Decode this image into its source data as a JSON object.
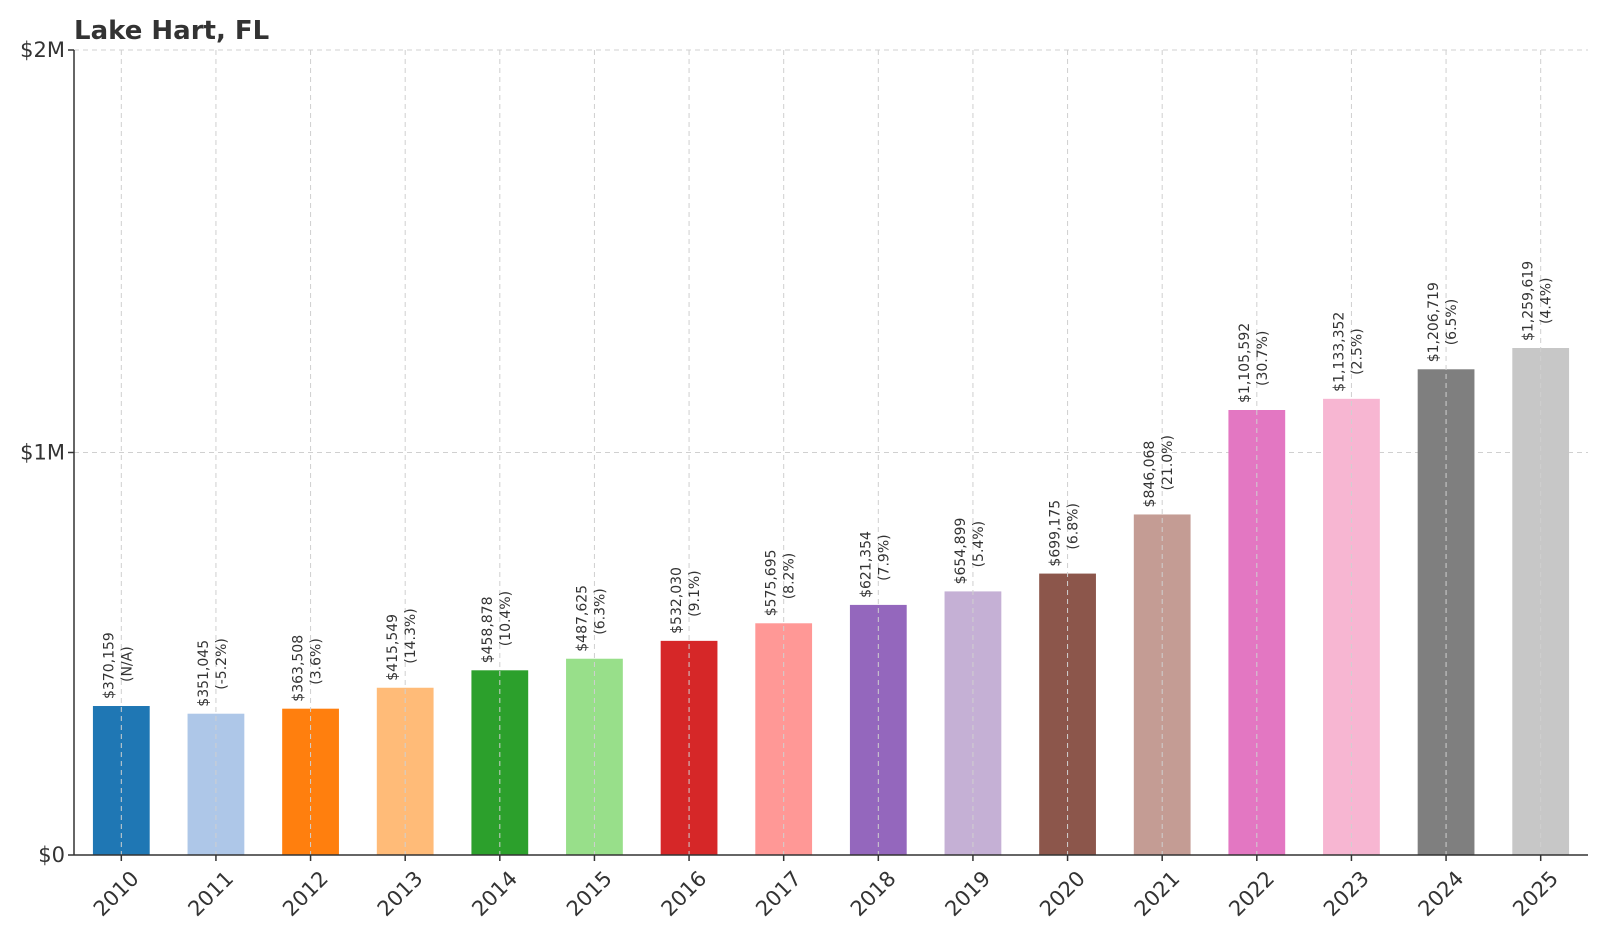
{
  "chart_data": {
    "type": "bar",
    "title": "Lake Hart, FL",
    "xlabel": "",
    "ylabel": "",
    "ylim": [
      0,
      2000000
    ],
    "grid": true,
    "yticks": [
      {
        "value": 0,
        "label": "$0"
      },
      {
        "value": 1000000,
        "label": "$1M"
      },
      {
        "value": 2000000,
        "label": "$2M"
      }
    ],
    "categories": [
      "2010",
      "2011",
      "2012",
      "2013",
      "2014",
      "2015",
      "2016",
      "2017",
      "2018",
      "2019",
      "2020",
      "2021",
      "2022",
      "2023",
      "2024",
      "2025"
    ],
    "values": [
      370159,
      351045,
      363508,
      415549,
      458878,
      487625,
      532030,
      575695,
      621354,
      654899,
      699175,
      846068,
      1105592,
      1133352,
      1206719,
      1259619
    ],
    "value_labels": [
      "$370,159",
      "$351,045",
      "$363,508",
      "$415,549",
      "$458,878",
      "$487,625",
      "$532,030",
      "$575,695",
      "$621,354",
      "$654,899",
      "$699,175",
      "$846,068",
      "$1,105,592",
      "$1,133,352",
      "$1,206,719",
      "$1,259,619"
    ],
    "change_labels": [
      "(N/A)",
      "(-5.2%)",
      "(3.6%)",
      "(14.3%)",
      "(10.4%)",
      "(6.3%)",
      "(9.1%)",
      "(8.2%)",
      "(7.9%)",
      "(5.4%)",
      "(6.8%)",
      "(21.0%)",
      "(30.7%)",
      "(2.5%)",
      "(6.5%)",
      "(4.4%)"
    ],
    "colors": [
      "#1f77b4",
      "#aec7e8",
      "#ff7f0e",
      "#ffbb78",
      "#2ca02c",
      "#98df8a",
      "#d62728",
      "#ff9896",
      "#9467bd",
      "#c5b0d5",
      "#8c564b",
      "#c49c94",
      "#e377c2",
      "#f7b6d2",
      "#7f7f7f",
      "#c7c7c7"
    ]
  }
}
